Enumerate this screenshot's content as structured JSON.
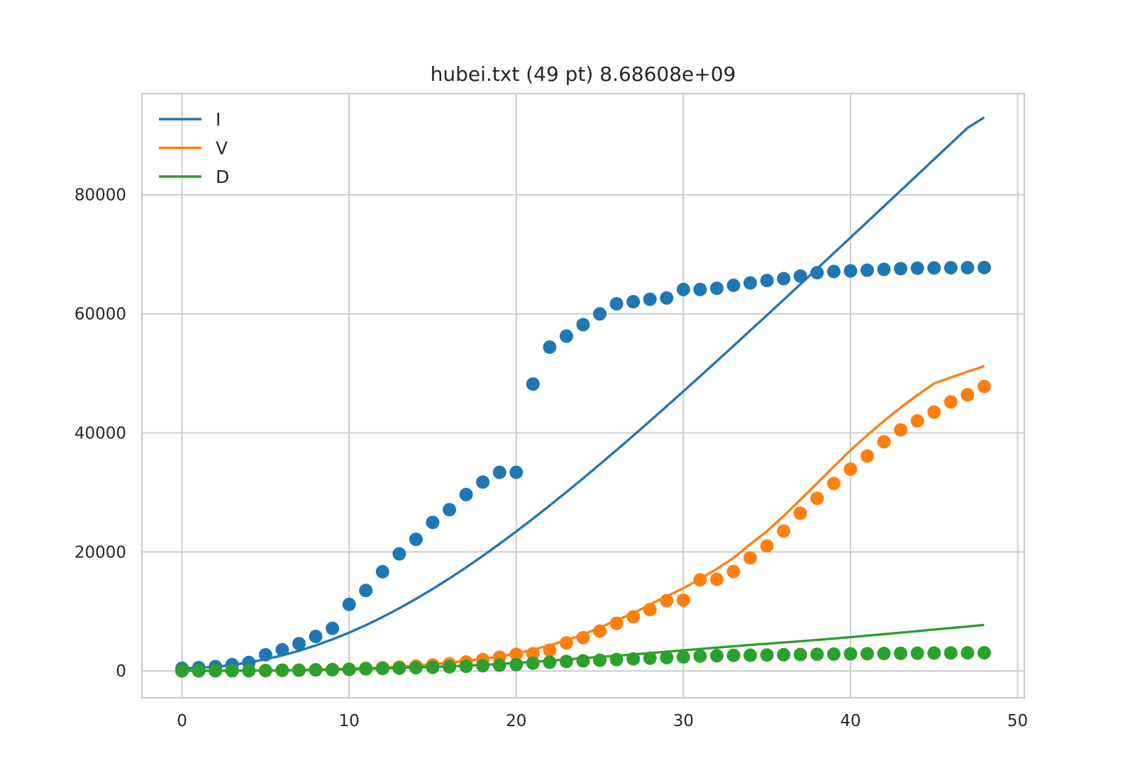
{
  "chart_data": {
    "type": "line",
    "title": "hubei.txt (49 pt) 8.68608e+09",
    "xlabel": "",
    "ylabel": "",
    "xlim": [
      -2.4,
      50.4
    ],
    "ylim": [
      -4500,
      97000
    ],
    "xticks": [
      0,
      10,
      20,
      30,
      40,
      50
    ],
    "yticks": [
      0,
      20000,
      40000,
      60000,
      80000
    ],
    "grid": true,
    "legend_position": "top-left",
    "x": [
      0,
      1,
      2,
      3,
      4,
      5,
      6,
      7,
      8,
      9,
      10,
      11,
      12,
      13,
      14,
      15,
      16,
      17,
      18,
      19,
      20,
      21,
      22,
      23,
      24,
      25,
      26,
      27,
      28,
      29,
      30,
      31,
      32,
      33,
      34,
      35,
      36,
      37,
      38,
      39,
      40,
      41,
      42,
      43,
      44,
      45,
      46,
      47,
      48
    ],
    "series": [
      {
        "name": "I",
        "color": "#1f77b4",
        "observed": [
          444,
          549,
          729,
          1052,
          1423,
          2714,
          3554,
          4586,
          5806,
          7153,
          11177,
          13522,
          16678,
          19665,
          22112,
          24953,
          27100,
          29631,
          31728,
          33366,
          33366,
          48206,
          54406,
          56249,
          58182,
          59989,
          61682,
          62031,
          62442,
          62662,
          64084,
          64084,
          64287,
          64786,
          65187,
          65596,
          65914,
          66337,
          66907,
          67103,
          67217,
          67332,
          67466,
          67592,
          67666,
          67707,
          67743,
          67760,
          67773
        ],
        "fitted": [
          444,
          515,
          705,
          1009,
          1428,
          1963,
          2616,
          3391,
          4287,
          5303,
          6438,
          7689,
          9053,
          10525,
          12102,
          13777,
          15546,
          17402,
          19340,
          21354,
          23438,
          25587,
          27794,
          30055,
          32364,
          34716,
          37107,
          39533,
          41990,
          44473,
          46981,
          49508,
          52054,
          54615,
          57189,
          59775,
          62370,
          64973,
          67583,
          70198,
          72818,
          75442,
          78069,
          80699,
          83331,
          85965,
          88600,
          91236,
          93000
        ]
      },
      {
        "name": "V",
        "color": "#ff7f0e",
        "observed": [
          28,
          31,
          32,
          42,
          44,
          50,
          100,
          150,
          200,
          250,
          300,
          450,
          550,
          650,
          800,
          1000,
          1200,
          1500,
          1900,
          2300,
          2800,
          2900,
          3500,
          4700,
          5600,
          6700,
          8000,
          9100,
          10300,
          11800,
          11900,
          15300,
          15400,
          16700,
          19000,
          21000,
          23500,
          26500,
          29000,
          31500,
          33900,
          36100,
          38500,
          40500,
          42000,
          43500,
          45200,
          46400,
          47800
        ]
      },
      {
        "name": "D",
        "color": "#2ca02c",
        "observed": [
          17,
          17,
          24,
          40,
          52,
          76,
          125,
          125,
          162,
          204,
          249,
          350,
          414,
          479,
          549,
          618,
          699,
          780,
          871,
          974,
          1068,
          1310,
          1457,
          1596,
          1696,
          1789,
          1921,
          2029,
          2144,
          2250,
          2346,
          2495,
          2563,
          2615,
          2641,
          2682,
          2727,
          2761,
          2803,
          2835,
          2871,
          2902,
          2931,
          2959,
          2986,
          3008,
          3024,
          3046,
          3056
        ]
      }
    ]
  }
}
